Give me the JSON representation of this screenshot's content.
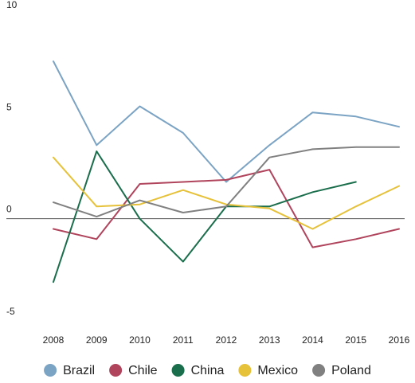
{
  "chart_data": {
    "type": "line",
    "title": "",
    "xlabel": "",
    "ylabel": "",
    "x": [
      "2008",
      "2009",
      "2010",
      "2011",
      "2012",
      "2013",
      "2014",
      "2015",
      "2016"
    ],
    "ylim": [
      -5,
      10
    ],
    "yticks": [
      10,
      5,
      0,
      -5
    ],
    "ytick_labels": [
      "10",
      "5",
      "0",
      "-5"
    ],
    "grid": false,
    "zero_line": true,
    "legend_position": "bottom",
    "series": [
      {
        "name": "Brazil",
        "color": "#7ba3c4",
        "values": [
          7.7,
          3.6,
          5.5,
          4.2,
          1.8,
          3.6,
          5.2,
          5.0,
          4.5
        ]
      },
      {
        "name": "Chile",
        "color": "#b0445c",
        "values": [
          -0.5,
          -1.0,
          1.7,
          1.8,
          1.9,
          2.4,
          -1.4,
          -1.0,
          -0.5
        ]
      },
      {
        "name": "China",
        "color": "#1a6e4c",
        "values": [
          -3.1,
          3.3,
          0.0,
          -2.1,
          0.6,
          0.6,
          1.3,
          1.8,
          null
        ]
      },
      {
        "name": "Mexico",
        "color": "#e6c13a",
        "values": [
          3.0,
          0.6,
          0.7,
          1.4,
          0.7,
          0.5,
          -0.5,
          0.6,
          1.6
        ]
      },
      {
        "name": "Poland",
        "color": "#808080",
        "values": [
          0.8,
          0.1,
          0.9,
          0.3,
          0.6,
          3.0,
          3.4,
          3.5,
          3.5
        ]
      }
    ]
  }
}
